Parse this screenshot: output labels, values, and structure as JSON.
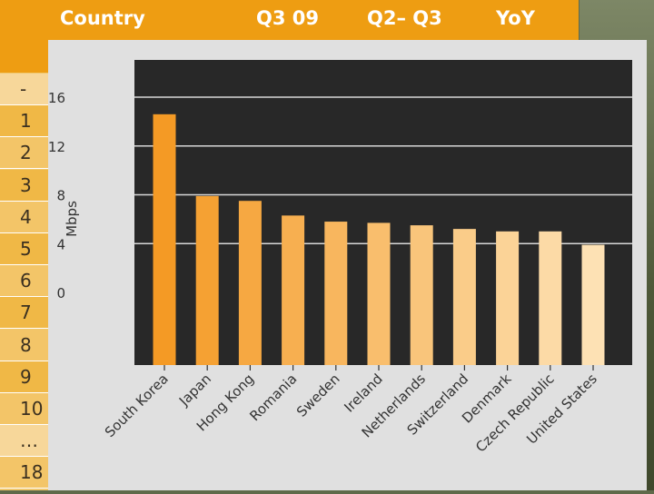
{
  "table": {
    "headers": [
      "Country",
      "Q3 09",
      "Q2– Q3",
      "YoY"
    ],
    "ranks": [
      "-",
      "1",
      "2",
      "3",
      "4",
      "5",
      "6",
      "7",
      "8",
      "9",
      "10",
      "…",
      "18"
    ]
  },
  "colors": {
    "header": "#ee9d12",
    "row_dark": "#f0b846",
    "row_light": "#f7d79a",
    "plot_bg": "#282828",
    "bar_start": "#f49a25",
    "bar_end": "#fde1b4"
  },
  "chart_data": {
    "type": "bar",
    "ylabel": "Mbps",
    "ylim": [
      0,
      16
    ],
    "yticks": [
      0,
      4,
      8,
      12,
      16
    ],
    "grid": true,
    "categories": [
      "South Korea",
      "Japan",
      "Hong Kong",
      "Romania",
      "Sweden",
      "Ireland",
      "Netherlands",
      "Switzerland",
      "Denmark",
      "Czech Republic",
      "United States"
    ],
    "values": [
      14.6,
      7.9,
      7.5,
      6.3,
      5.8,
      5.7,
      5.5,
      5.2,
      5.0,
      5.0,
      3.9
    ]
  }
}
